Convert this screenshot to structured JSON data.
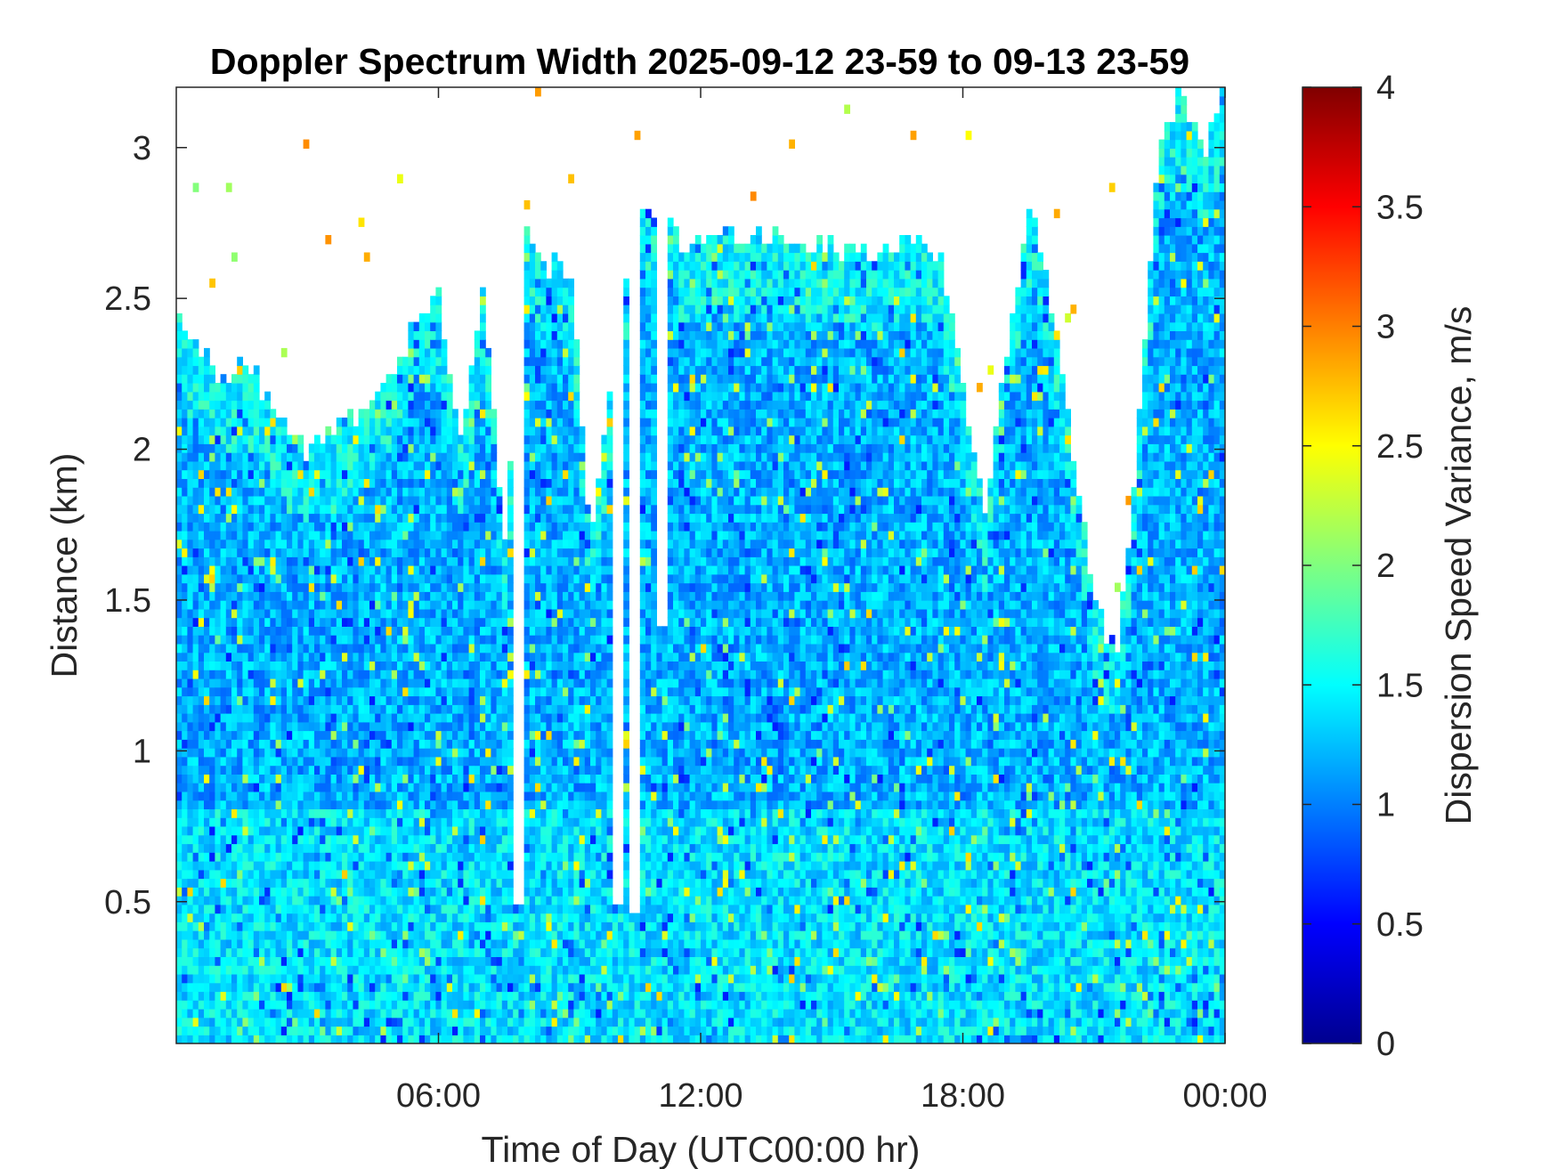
{
  "chart_data": {
    "type": "heatmap",
    "title": "Doppler Spectrum Width 2025-09-12 23-59 to 09-13 23-59",
    "xlabel": "Time of Day (UTC00:00 hr)",
    "ylabel": "Distance (km)",
    "x_range_hours": [
      0,
      24
    ],
    "x_ticks": [
      {
        "value": 6,
        "label": "06:00"
      },
      {
        "value": 12,
        "label": "12:00"
      },
      {
        "value": 18,
        "label": "18:00"
      },
      {
        "value": 24,
        "label": "00:00"
      }
    ],
    "y_range_km": [
      0.03,
      3.2
    ],
    "y_ticks": [
      {
        "value": 0.5,
        "label": "0.5"
      },
      {
        "value": 1,
        "label": "1"
      },
      {
        "value": 1.5,
        "label": "1.5"
      },
      {
        "value": 2,
        "label": "2"
      },
      {
        "value": 2.5,
        "label": "2.5"
      },
      {
        "value": 3,
        "label": "3"
      }
    ],
    "colorbar": {
      "label": "Dispersion Speed Variance, m/s",
      "colormap": "jet",
      "range": [
        0,
        4
      ],
      "ticks": [
        {
          "value": 0,
          "label": "0"
        },
        {
          "value": 0.5,
          "label": "0.5"
        },
        {
          "value": 1,
          "label": "1"
        },
        {
          "value": 1.5,
          "label": "1.5"
        },
        {
          "value": 2,
          "label": "2"
        },
        {
          "value": 2.5,
          "label": "2.5"
        },
        {
          "value": 3,
          "label": "3"
        },
        {
          "value": 3.5,
          "label": "3.5"
        },
        {
          "value": 4,
          "label": "4"
        }
      ]
    },
    "typical_value_near_surface": 1.4,
    "typical_value_aloft": 1.2,
    "valid_data_top_km": [
      [
        0.0,
        2.45
      ],
      [
        0.5,
        2.35
      ],
      [
        1.0,
        2.2
      ],
      [
        1.5,
        2.3
      ],
      [
        2.0,
        2.2
      ],
      [
        3.0,
        2.0
      ],
      [
        4.0,
        2.1
      ],
      [
        5.0,
        2.25
      ],
      [
        5.5,
        2.45
      ],
      [
        6.0,
        2.5
      ],
      [
        6.5,
        2.0
      ],
      [
        7.0,
        2.55
      ],
      [
        7.5,
        1.7
      ],
      [
        8.0,
        2.7
      ],
      [
        8.5,
        2.6
      ],
      [
        9.0,
        2.6
      ],
      [
        9.5,
        1.7
      ],
      [
        10.0,
        2.3
      ],
      [
        10.5,
        2.75
      ],
      [
        11.0,
        2.8
      ],
      [
        11.5,
        2.7
      ],
      [
        12.0,
        2.7
      ],
      [
        12.5,
        2.75
      ],
      [
        13.0,
        2.7
      ],
      [
        14.0,
        2.7
      ],
      [
        15.0,
        2.68
      ],
      [
        16.0,
        2.65
      ],
      [
        17.0,
        2.68
      ],
      [
        17.5,
        2.65
      ],
      [
        18.0,
        2.2
      ],
      [
        18.5,
        1.8
      ],
      [
        19.0,
        2.3
      ],
      [
        19.5,
        2.85
      ],
      [
        20.0,
        2.5
      ],
      [
        20.5,
        2.0
      ],
      [
        21.0,
        1.5
      ],
      [
        21.5,
        1.3
      ],
      [
        22.0,
        2.0
      ],
      [
        22.5,
        3.0
      ],
      [
        23.0,
        3.2
      ],
      [
        23.5,
        3.0
      ],
      [
        24.0,
        3.2
      ]
    ],
    "clear_gaps": [
      {
        "x_hours": [
          7.7,
          8.0
        ],
        "bottom_km": 0.5
      },
      {
        "x_hours": [
          10.0,
          10.25
        ],
        "bottom_km": 0.5
      },
      {
        "x_hours": [
          10.4,
          10.6
        ],
        "bottom_km": 0.45
      },
      {
        "x_hours": [
          11.0,
          11.3
        ],
        "bottom_km": 1.4
      }
    ]
  }
}
